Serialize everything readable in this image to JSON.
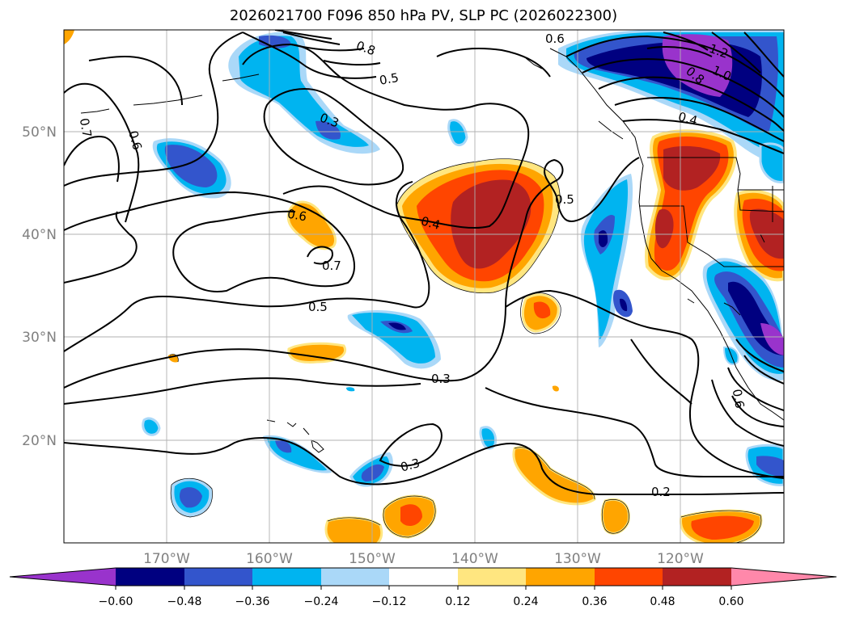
{
  "title": "2026021700 F096 850 hPa PV, SLP PC (2026022300)",
  "map": {
    "lon_labels": [
      "170°W",
      "160°W",
      "150°W",
      "140°W",
      "130°W",
      "120°W"
    ],
    "lat_labels": [
      "50°N",
      "40°N",
      "30°N",
      "20°N"
    ],
    "contour_labels": [
      "0.3",
      "0.4",
      "0.5",
      "0.6",
      "0.7",
      "0.3",
      "0.5",
      "0.6",
      "0.7",
      "0.2",
      "0.3",
      "0.8",
      "0.6",
      "0.5",
      "1.2",
      "1.0",
      "0.8",
      "0.6",
      "0.4"
    ]
  },
  "colorbar": {
    "colors": [
      "#9933cc",
      "#000080",
      "#3355cc",
      "#00b4f0",
      "#aad8f8",
      "#ffffff",
      "#ffe680",
      "#ffa500",
      "#ff4500",
      "#b22222",
      "#ff88aa"
    ],
    "ticks": [
      "−0.60",
      "−0.48",
      "−0.36",
      "−0.24",
      "−0.12",
      "0.12",
      "0.24",
      "0.36",
      "0.48",
      "0.60"
    ]
  },
  "colors": {
    "dark_red": "#b22222",
    "red_orange": "#ff4500",
    "orange": "#ffa500",
    "yellow": "#ffe680",
    "light_blue": "#aad8f8",
    "cyan_blue": "#00b4f0",
    "royal_blue": "#3355cc",
    "navy": "#000080",
    "purple": "#9933cc",
    "gridline": "#b0b0b0"
  }
}
